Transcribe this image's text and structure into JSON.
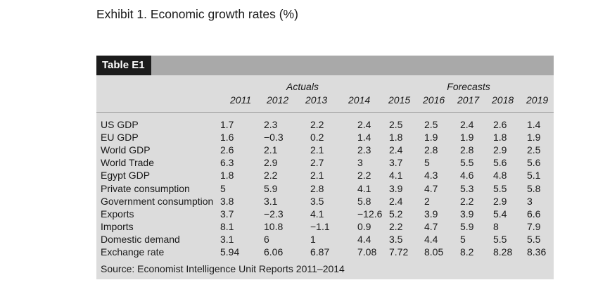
{
  "exhibit_title": "Exhibit 1. Economic growth rates (%)",
  "table": {
    "title": "Table E1",
    "groups": {
      "actuals": "Actuals",
      "forecasts": "Forecasts"
    },
    "years": [
      "2011",
      "2012",
      "2013",
      "2014",
      "2015",
      "2016",
      "2017",
      "2018",
      "2019"
    ],
    "rows": [
      {
        "label": "US GDP",
        "values": [
          "1.7",
          "2.3",
          "2.2",
          "2.4",
          "2.5",
          "2.5",
          "2.4",
          "2.6",
          "1.4"
        ]
      },
      {
        "label": "EU GDP",
        "values": [
          "1.6",
          "−0.3",
          "0.2",
          "1.4",
          "1.8",
          "1.9",
          "1.9",
          "1.8",
          "1.9"
        ]
      },
      {
        "label": "World GDP",
        "values": [
          "2.6",
          "2.1",
          "2.1",
          "2.3",
          "2.4",
          "2.8",
          "2.8",
          "2.9",
          "2.5"
        ]
      },
      {
        "label": "World Trade",
        "values": [
          "6.3",
          "2.9",
          "2.7",
          "3",
          "3.7",
          "5",
          "5.5",
          "5.6",
          "5.6"
        ]
      },
      {
        "label": "Egypt GDP",
        "values": [
          "1.8",
          "2.2",
          "2.1",
          "2.2",
          "4.1",
          "4.3",
          "4.6",
          "4.8",
          "5.1"
        ]
      },
      {
        "label": "Private consumption",
        "values": [
          "5",
          "5.9",
          "2.8",
          "4.1",
          "3.9",
          "4.7",
          "5.3",
          "5.5",
          "5.8"
        ]
      },
      {
        "label": "Government consumption",
        "values": [
          "3.8",
          "3.1",
          "3.5",
          "5.8",
          "2.4",
          "2",
          "2.2",
          "2.9",
          "3"
        ]
      },
      {
        "label": "Exports",
        "values": [
          "3.7",
          "−2.3",
          "4.1",
          "−12.6",
          "5.2",
          "3.9",
          "3.9",
          "5.4",
          "6.6"
        ]
      },
      {
        "label": "Imports",
        "values": [
          "8.1",
          "10.8",
          "−1.1",
          "0.9",
          "2.2",
          "4.7",
          "5.9",
          "8",
          "7.9"
        ]
      },
      {
        "label": "Domestic demand",
        "values": [
          "3.1",
          "6",
          "1",
          "4.4",
          "3.5",
          "4.4",
          "5",
          "5.5",
          "5.5"
        ]
      },
      {
        "label": "Exchange rate",
        "values": [
          "5.94",
          "6.06",
          "6.87",
          "7.08",
          "7.72",
          "8.05",
          "8.2",
          "8.28",
          "8.36"
        ]
      }
    ],
    "source": "Source: Economist Intelligence Unit Reports 2011–2014"
  }
}
